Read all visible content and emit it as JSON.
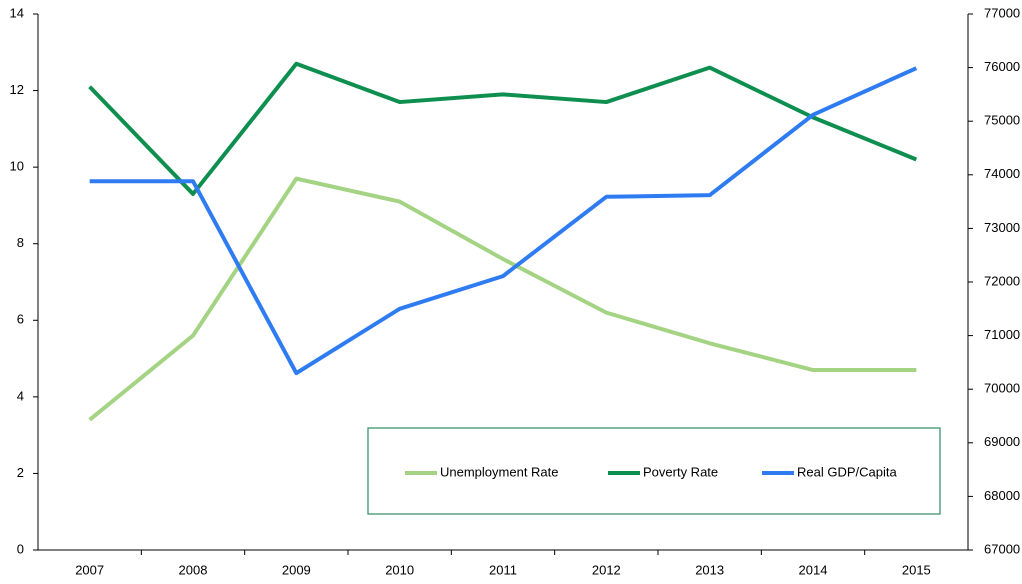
{
  "chart_data": {
    "type": "line",
    "categories": [
      "2007",
      "2008",
      "2009",
      "2010",
      "2011",
      "2012",
      "2013",
      "2014",
      "2015"
    ],
    "series": [
      {
        "name": "Unemployment Rate",
        "color": "#a4d483",
        "values": [
          3.4,
          5.6,
          9.7,
          9.1,
          7.6,
          6.2,
          5.4,
          4.7,
          4.7
        ]
      },
      {
        "name": "Poverty Rate",
        "color": "#0e8f4f",
        "values": [
          12.1,
          9.3,
          12.7,
          11.7,
          11.9,
          11.7,
          12.6,
          11.3,
          10.2
        ]
      },
      {
        "name": "Real GDP/Capita",
        "color": "#2f7cf2",
        "axis": "y2",
        "values": [
          73880,
          73880,
          70300,
          71500,
          72110,
          73590,
          73620,
          75120,
          75990
        ]
      }
    ],
    "ylim": [
      0,
      14
    ],
    "yticks": [
      0,
      2,
      4,
      6,
      8,
      10,
      12,
      14
    ],
    "y2lim": [
      67000,
      77000
    ],
    "y2ticks": [
      67000,
      68000,
      69000,
      70000,
      71000,
      72000,
      73000,
      74000,
      75000,
      76000,
      77000
    ]
  }
}
